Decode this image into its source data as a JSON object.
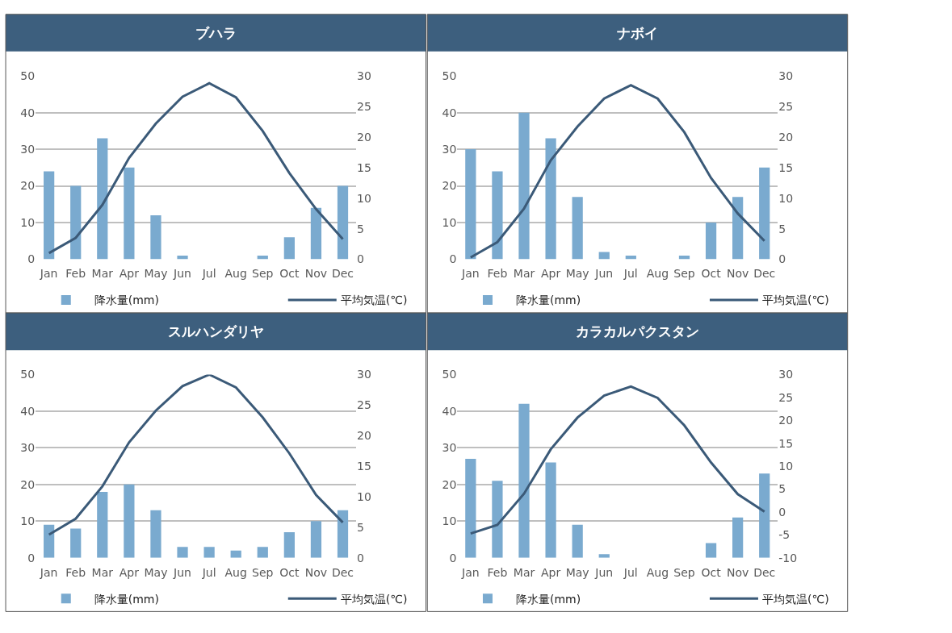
{
  "chart_data": [
    {
      "type": "bar",
      "title": "ブハラ",
      "categories": [
        "Jan",
        "Feb",
        "Mar",
        "Apr",
        "May",
        "Jun",
        "Jul",
        "Aug",
        "Sep",
        "Oct",
        "Nov",
        "Dec"
      ],
      "series": [
        {
          "name": "降水量(mm)",
          "color": "#7aaacf",
          "values": [
            24,
            20,
            33,
            25,
            12,
            1,
            0,
            0,
            1,
            6,
            14,
            20
          ]
        },
        {
          "name": "平均気温(℃)",
          "type": "line",
          "axis": "y2",
          "color": "#3b5a78",
          "values": [
            1.0,
            3.5,
            8.9,
            16.6,
            22.2,
            26.6,
            28.8,
            26.5,
            21.0,
            14.1,
            8.2,
            3.3
          ]
        }
      ],
      "ylim": [
        0,
        50
      ],
      "yticks": [
        0,
        10,
        20,
        30,
        40,
        50
      ],
      "y2lim": [
        0,
        30
      ],
      "y2ticks": [
        0,
        5,
        10,
        15,
        20,
        25,
        30
      ],
      "grid": "y",
      "legend": "bottom"
    },
    {
      "type": "bar",
      "title": "ナボイ",
      "categories": [
        "Jan",
        "Feb",
        "Mar",
        "Apr",
        "May",
        "Jun",
        "Jul",
        "Aug",
        "Sep",
        "Oct",
        "Nov",
        "Dec"
      ],
      "series": [
        {
          "name": "降水量(mm)",
          "color": "#7aaacf",
          "values": [
            30,
            24,
            40,
            33,
            17,
            2,
            1,
            0,
            1,
            10,
            17,
            25
          ]
        },
        {
          "name": "平均気温(℃)",
          "type": "line",
          "axis": "y2",
          "color": "#3b5a78",
          "values": [
            0.3,
            2.8,
            8.3,
            16.2,
            21.7,
            26.3,
            28.5,
            26.3,
            20.8,
            13.3,
            7.5,
            3.0
          ]
        }
      ],
      "ylim": [
        0,
        50
      ],
      "yticks": [
        0,
        10,
        20,
        30,
        40,
        50
      ],
      "y2lim": [
        0,
        30
      ],
      "y2ticks": [
        0,
        5,
        10,
        15,
        20,
        25,
        30
      ],
      "grid": "y",
      "legend": "bottom"
    },
    {
      "type": "bar",
      "title": "スルハンダリヤ",
      "categories": [
        "Jan",
        "Feb",
        "Mar",
        "Apr",
        "May",
        "Jun",
        "Jul",
        "Aug",
        "Sep",
        "Oct",
        "Nov",
        "Dec"
      ],
      "series": [
        {
          "name": "降水量(mm)",
          "color": "#7aaacf",
          "values": [
            9,
            8,
            18,
            20,
            13,
            3,
            3,
            2,
            3,
            7,
            10,
            13
          ]
        },
        {
          "name": "平均気温(℃)",
          "type": "line",
          "axis": "y2",
          "color": "#3b5a78",
          "values": [
            3.8,
            6.4,
            11.7,
            18.9,
            24.1,
            28.1,
            30.0,
            27.9,
            23.0,
            17.1,
            10.3,
            5.8
          ]
        }
      ],
      "ylim": [
        0,
        50
      ],
      "yticks": [
        0,
        10,
        20,
        30,
        40,
        50
      ],
      "y2lim": [
        0,
        30
      ],
      "y2ticks": [
        0,
        5,
        10,
        15,
        20,
        25,
        30
      ],
      "grid": "y",
      "legend": "bottom"
    },
    {
      "type": "bar",
      "title": "カラカルパクスタン",
      "categories": [
        "Jan",
        "Feb",
        "Mar",
        "Apr",
        "May",
        "Jun",
        "Jul",
        "Aug",
        "Sep",
        "Oct",
        "Nov",
        "Dec"
      ],
      "series": [
        {
          "name": "降水量(mm)",
          "color": "#7aaacf",
          "values": [
            27,
            21,
            42,
            26,
            9,
            1,
            0,
            0,
            0,
            4,
            11,
            23
          ]
        },
        {
          "name": "平均気温(℃)",
          "type": "line",
          "axis": "y2",
          "color": "#3b5a78",
          "values": [
            -4.7,
            -2.8,
            4.0,
            13.7,
            20.6,
            25.4,
            27.4,
            24.9,
            18.9,
            10.8,
            3.9,
            0.1
          ]
        }
      ],
      "ylim": [
        0,
        50
      ],
      "yticks": [
        0,
        10,
        20,
        30,
        40,
        50
      ],
      "y2lim": [
        -10,
        30
      ],
      "y2ticks": [
        -10,
        -5,
        0,
        5,
        10,
        15,
        20,
        25,
        30
      ],
      "grid": "y",
      "legend": "bottom"
    }
  ]
}
